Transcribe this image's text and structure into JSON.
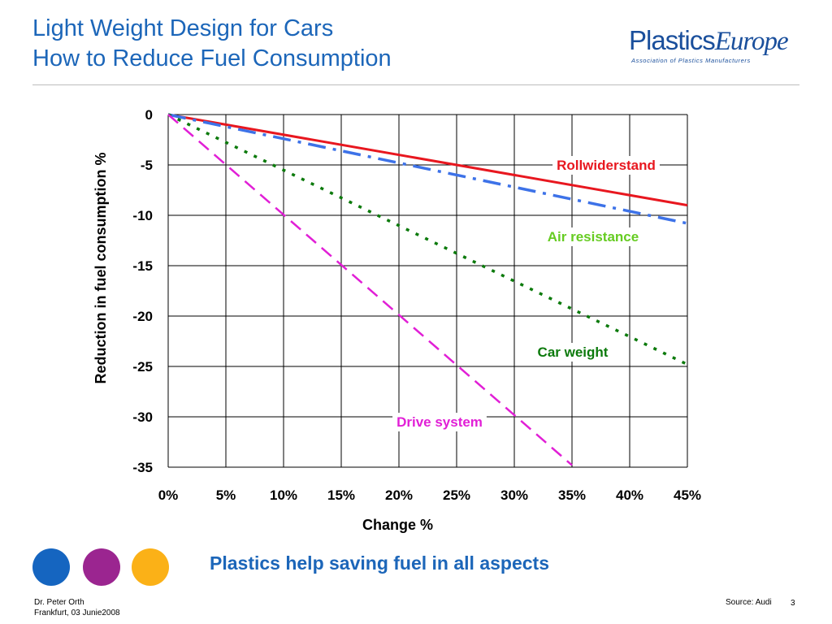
{
  "title": {
    "line1": "Light Weight Design for Cars",
    "line2": "How to Reduce Fuel Consumption"
  },
  "logo": {
    "part1": "Plastics",
    "part2": "Europe",
    "subtitle": "Association of Plastics Manufacturers"
  },
  "tagline": "Plastics help saving fuel in all aspects",
  "footer": {
    "author": "Dr. Peter Orth",
    "place_date": "Frankfurt, 03 Junie2008",
    "source": "Source: Audi",
    "page_number": "3"
  },
  "dots": [
    {
      "name": "blue-dot",
      "color": "#1565c0"
    },
    {
      "name": "purple-dot",
      "color": "#9b2590"
    },
    {
      "name": "orange-dot",
      "color": "#fbb117"
    }
  ],
  "chart_data": {
    "type": "line",
    "xlabel": "Change %",
    "ylabel": "Reduction in fuel consumption %",
    "xlim": [
      0,
      45
    ],
    "ylim": [
      -35,
      0
    ],
    "x_ticks": [
      0,
      5,
      10,
      15,
      20,
      25,
      30,
      35,
      40,
      45
    ],
    "x_tick_labels": [
      "0%",
      "5%",
      "10%",
      "15%",
      "20%",
      "25%",
      "30%",
      "35%",
      "40%",
      "45%"
    ],
    "y_ticks": [
      0,
      -5,
      -10,
      -15,
      -20,
      -25,
      -30,
      -35
    ],
    "y_tick_labels": [
      "0",
      "-5",
      "-10",
      "-15",
      "-20",
      "-25",
      "-30",
      "-35"
    ],
    "grid": true,
    "series": [
      {
        "name": "Rollwiderstand",
        "color": "#e8171f",
        "dash": "solid",
        "x": [
          0,
          45
        ],
        "y": [
          0,
          -9
        ]
      },
      {
        "name": "Air resistance",
        "label_color": "#66cc22",
        "color": "#3d72e8",
        "dash": "dashdot",
        "x": [
          0,
          45
        ],
        "y": [
          0,
          -10.8
        ]
      },
      {
        "name": "Car weight",
        "color": "#0c7a0c",
        "dash": "dotted",
        "x": [
          0,
          45
        ],
        "y": [
          0,
          -24.8
        ]
      },
      {
        "name": "Drive system",
        "color": "#e11fd6",
        "dash": "dashed",
        "x": [
          0,
          35
        ],
        "y": [
          0,
          -34.8
        ]
      }
    ]
  }
}
